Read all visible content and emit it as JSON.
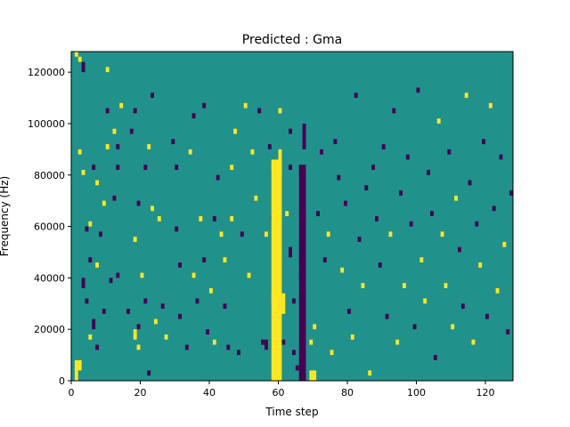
{
  "chart_data": {
    "type": "heatmap",
    "title": "Predicted : Gma",
    "xlabel": "Time step",
    "ylabel": "Frequency (Hz)",
    "xlim": [
      0,
      128
    ],
    "ylim": [
      0,
      128000
    ],
    "xticks": [
      0,
      20,
      40,
      60,
      80,
      100,
      120
    ],
    "xtick_labels": [
      "0",
      "20",
      "40",
      "60",
      "80",
      "100",
      "120"
    ],
    "yticks": [
      0,
      20000,
      40000,
      60000,
      80000,
      100000,
      120000
    ],
    "ytick_labels": [
      "0",
      "20000",
      "40000",
      "60000",
      "80000",
      "100000",
      "120000"
    ],
    "grid": false,
    "colormap": "viridis",
    "background_value": 0,
    "colors": {
      "background": "#21918c",
      "high": "#fde725",
      "low": "#440154"
    },
    "cells_note": "time steps x frequency bins (bin height 2000 Hz); value 1 = high (yellow), -1 = low (purple)",
    "cells": [
      [
        1,
        0,
        8000,
        1
      ],
      [
        1,
        126000,
        128000,
        1
      ],
      [
        2,
        124000,
        126000,
        1
      ],
      [
        3,
        120000,
        124000,
        -1
      ],
      [
        2,
        4000,
        8000,
        1
      ],
      [
        3,
        36000,
        40000,
        -1
      ],
      [
        2,
        88000,
        90000,
        1
      ],
      [
        3,
        80000,
        82000,
        1
      ],
      [
        4,
        58000,
        60000,
        -1
      ],
      [
        5,
        46000,
        48000,
        -1
      ],
      [
        4,
        30000,
        32000,
        -1
      ],
      [
        5,
        16000,
        18000,
        1
      ],
      [
        6,
        82000,
        84000,
        -1
      ],
      [
        5,
        60000,
        62000,
        1
      ],
      [
        6,
        20000,
        24000,
        -1
      ],
      [
        7,
        12000,
        14000,
        -1
      ],
      [
        7,
        76000,
        78000,
        1
      ],
      [
        7,
        44000,
        46000,
        1
      ],
      [
        8,
        56000,
        58000,
        -1
      ],
      [
        9,
        68000,
        70000,
        1
      ],
      [
        9,
        26000,
        28000,
        -1
      ],
      [
        10,
        120000,
        122000,
        1
      ],
      [
        10,
        104000,
        106000,
        -1
      ],
      [
        10,
        90000,
        92000,
        1
      ],
      [
        11,
        38000,
        40000,
        -1
      ],
      [
        12,
        70000,
        72000,
        -1
      ],
      [
        12,
        96000,
        98000,
        1
      ],
      [
        13,
        90000,
        92000,
        -1
      ],
      [
        14,
        106000,
        108000,
        1
      ],
      [
        13,
        82000,
        84000,
        -1
      ],
      [
        13,
        40000,
        42000,
        -1
      ],
      [
        16,
        26000,
        28000,
        -1
      ],
      [
        17,
        96000,
        98000,
        -1
      ],
      [
        18,
        104000,
        106000,
        -1
      ],
      [
        18,
        16000,
        20000,
        1
      ],
      [
        19,
        12000,
        14000,
        1
      ],
      [
        18,
        54000,
        56000,
        1
      ],
      [
        19,
        20000,
        22000,
        -1
      ],
      [
        19,
        68000,
        70000,
        -1
      ],
      [
        20,
        40000,
        42000,
        1
      ],
      [
        21,
        30000,
        32000,
        -1
      ],
      [
        21,
        82000,
        84000,
        -1
      ],
      [
        22,
        2000,
        4000,
        -1
      ],
      [
        22,
        90000,
        92000,
        1
      ],
      [
        23,
        110000,
        112000,
        -1
      ],
      [
        23,
        66000,
        68000,
        1
      ],
      [
        24,
        22000,
        24000,
        1
      ],
      [
        25,
        62000,
        64000,
        1
      ],
      [
        26,
        28000,
        30000,
        -1
      ],
      [
        27,
        16000,
        18000,
        1
      ],
      [
        29,
        92000,
        94000,
        -1
      ],
      [
        30,
        82000,
        84000,
        -1
      ],
      [
        30,
        58000,
        60000,
        -1
      ],
      [
        31,
        44000,
        46000,
        -1
      ],
      [
        31,
        24000,
        26000,
        -1
      ],
      [
        33,
        12000,
        14000,
        -1
      ],
      [
        34,
        88000,
        90000,
        1
      ],
      [
        35,
        102000,
        104000,
        -1
      ],
      [
        35,
        40000,
        42000,
        1
      ],
      [
        36,
        30000,
        32000,
        -1
      ],
      [
        37,
        62000,
        64000,
        1
      ],
      [
        38,
        46000,
        48000,
        -1
      ],
      [
        38,
        106000,
        108000,
        -1
      ],
      [
        39,
        18000,
        20000,
        -1
      ],
      [
        40,
        34000,
        36000,
        1
      ],
      [
        41,
        62000,
        64000,
        -1
      ],
      [
        41,
        14000,
        16000,
        1
      ],
      [
        42,
        78000,
        80000,
        -1
      ],
      [
        43,
        56000,
        58000,
        1
      ],
      [
        44,
        46000,
        48000,
        1
      ],
      [
        44,
        28000,
        30000,
        -1
      ],
      [
        45,
        12000,
        14000,
        -1
      ],
      [
        46,
        82000,
        84000,
        1
      ],
      [
        46,
        62000,
        64000,
        1
      ],
      [
        47,
        96000,
        98000,
        1
      ],
      [
        48,
        10000,
        12000,
        -1
      ],
      [
        49,
        56000,
        58000,
        -1
      ],
      [
        50,
        106000,
        108000,
        1
      ],
      [
        51,
        40000,
        42000,
        1
      ],
      [
        52,
        88000,
        90000,
        1
      ],
      [
        53,
        70000,
        72000,
        1
      ],
      [
        54,
        104000,
        106000,
        -1
      ],
      [
        55,
        14000,
        16000,
        -1
      ],
      [
        56,
        56000,
        58000,
        1
      ],
      [
        57,
        90000,
        92000,
        -1
      ],
      [
        58,
        82000,
        84000,
        1
      ],
      [
        58,
        62000,
        64000,
        -1
      ],
      [
        58,
        30000,
        34000,
        1
      ],
      [
        59,
        20000,
        24000,
        1
      ],
      [
        59,
        44000,
        46000,
        -1
      ],
      [
        60,
        104000,
        106000,
        1
      ],
      [
        61,
        14000,
        16000,
        -1
      ],
      [
        62,
        64000,
        66000,
        1
      ],
      [
        63,
        96000,
        98000,
        -1
      ],
      [
        63,
        82000,
        84000,
        -1
      ],
      [
        63,
        48000,
        52000,
        -1
      ],
      [
        64,
        30000,
        32000,
        -1
      ],
      [
        64,
        10000,
        12000,
        -1
      ],
      [
        65,
        4000,
        6000,
        -1
      ],
      [
        66,
        40000,
        42000,
        -1
      ],
      [
        67,
        60000,
        62000,
        -1
      ],
      [
        69,
        14000,
        16000,
        1
      ],
      [
        70,
        20000,
        22000,
        1
      ],
      [
        71,
        64000,
        66000,
        -1
      ],
      [
        72,
        88000,
        90000,
        -1
      ],
      [
        73,
        46000,
        48000,
        -1
      ],
      [
        74,
        56000,
        58000,
        1
      ],
      [
        75,
        10000,
        12000,
        1
      ],
      [
        76,
        92000,
        94000,
        -1
      ],
      [
        77,
        78000,
        80000,
        -1
      ],
      [
        78,
        42000,
        44000,
        1
      ],
      [
        79,
        68000,
        70000,
        -1
      ],
      [
        80,
        26000,
        28000,
        -1
      ],
      [
        81,
        16000,
        18000,
        1
      ],
      [
        82,
        110000,
        112000,
        -1
      ],
      [
        83,
        54000,
        56000,
        -1
      ],
      [
        84,
        36000,
        38000,
        1
      ],
      [
        85,
        74000,
        76000,
        -1
      ],
      [
        86,
        2000,
        4000,
        1
      ],
      [
        87,
        82000,
        84000,
        -1
      ],
      [
        88,
        62000,
        64000,
        -1
      ],
      [
        89,
        44000,
        46000,
        -1
      ],
      [
        90,
        90000,
        92000,
        -1
      ],
      [
        91,
        24000,
        26000,
        -1
      ],
      [
        92,
        56000,
        58000,
        1
      ],
      [
        93,
        104000,
        106000,
        -1
      ],
      [
        94,
        14000,
        16000,
        1
      ],
      [
        95,
        72000,
        74000,
        -1
      ],
      [
        96,
        36000,
        38000,
        1
      ],
      [
        97,
        86000,
        88000,
        -1
      ],
      [
        98,
        60000,
        62000,
        -1
      ],
      [
        99,
        20000,
        22000,
        -1
      ],
      [
        100,
        112000,
        114000,
        -1
      ],
      [
        101,
        46000,
        48000,
        1
      ],
      [
        102,
        30000,
        32000,
        1
      ],
      [
        103,
        80000,
        82000,
        -1
      ],
      [
        104,
        64000,
        66000,
        -1
      ],
      [
        105,
        8000,
        10000,
        -1
      ],
      [
        106,
        100000,
        102000,
        1
      ],
      [
        107,
        56000,
        58000,
        1
      ],
      [
        108,
        36000,
        38000,
        1
      ],
      [
        109,
        88000,
        90000,
        -1
      ],
      [
        110,
        20000,
        22000,
        1
      ],
      [
        111,
        70000,
        72000,
        1
      ],
      [
        112,
        50000,
        52000,
        -1
      ],
      [
        113,
        28000,
        30000,
        -1
      ],
      [
        114,
        110000,
        112000,
        1
      ],
      [
        115,
        76000,
        78000,
        -1
      ],
      [
        116,
        14000,
        16000,
        1
      ],
      [
        117,
        60000,
        62000,
        -1
      ],
      [
        118,
        44000,
        46000,
        1
      ],
      [
        119,
        92000,
        94000,
        -1
      ],
      [
        120,
        24000,
        26000,
        -1
      ],
      [
        121,
        106000,
        108000,
        1
      ],
      [
        122,
        66000,
        68000,
        -1
      ],
      [
        123,
        34000,
        36000,
        1
      ],
      [
        124,
        86000,
        88000,
        -1
      ],
      [
        125,
        52000,
        54000,
        1
      ],
      [
        126,
        18000,
        20000,
        -1
      ],
      [
        127,
        72000,
        74000,
        -1
      ]
    ],
    "bands": [
      [
        58,
        61,
        0,
        86000,
        1
      ],
      [
        61,
        62,
        26000,
        34000,
        1
      ],
      [
        66,
        68,
        0,
        84000,
        -1
      ],
      [
        60,
        61,
        80000,
        90000,
        1
      ],
      [
        67,
        68,
        90000,
        100000,
        -1
      ],
      [
        69,
        71,
        0,
        4000,
        1
      ],
      [
        56,
        57,
        12000,
        16000,
        -1
      ]
    ]
  }
}
